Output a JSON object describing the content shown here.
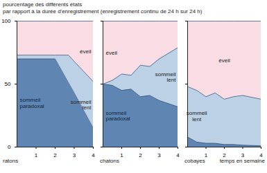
{
  "chart_data": [
    {
      "type": "area",
      "stacked": true,
      "title": "ratons",
      "y_label": "pourcentage des différents états\npar rapport à la durée d'enregistrement (enregistrement continu de 24 h sur 24 h)",
      "x": [
        0,
        1,
        2,
        2.7,
        3,
        4
      ],
      "xlim": [
        0,
        4
      ],
      "xticks": [
        1,
        2,
        3,
        4
      ],
      "ylim": [
        0,
        100
      ],
      "yticks": [
        0,
        50,
        100
      ],
      "series": [
        {
          "name": "sommeil paradoxal",
          "color": "#5f86b3",
          "values": [
            70,
            70,
            70,
            51,
            43,
            15
          ]
        },
        {
          "name": "sommeil lent",
          "color": "#bcd0e6",
          "values": [
            3,
            3,
            3,
            22,
            25,
            37
          ]
        },
        {
          "name": "éveil",
          "color": "#fadde4",
          "values": [
            27,
            27,
            27,
            27,
            32,
            48
          ]
        }
      ]
    },
    {
      "type": "area",
      "stacked": true,
      "title": "chatons",
      "x": [
        0,
        0.5,
        1,
        1.5,
        2,
        2.5,
        3,
        4
      ],
      "xlim": [
        0,
        4
      ],
      "xticks": [
        1,
        2,
        3,
        4
      ],
      "ylim": [
        0,
        100
      ],
      "yticks": [
        0,
        50,
        100
      ],
      "series": [
        {
          "name": "sommeil paradoxal",
          "color": "#5f86b3",
          "values": [
            50,
            49,
            45,
            46,
            40,
            41,
            37,
            32
          ]
        },
        {
          "name": "sommeil lent",
          "color": "#bcd0e6",
          "values": [
            0,
            4,
            13,
            11,
            25,
            23,
            33,
            47
          ]
        },
        {
          "name": "éveil",
          "color": "#fadde4",
          "values": [
            50,
            47,
            42,
            43,
            35,
            36,
            30,
            21
          ]
        }
      ]
    },
    {
      "type": "area",
      "stacked": true,
      "title": "cobayes",
      "x_label": "temps en semaine",
      "x": [
        0,
        0.5,
        1,
        1.5,
        2,
        2.5,
        3,
        4
      ],
      "xlim": [
        0,
        4
      ],
      "xticks": [
        1,
        2,
        3,
        4
      ],
      "ylim": [
        0,
        100
      ],
      "yticks": [
        0,
        50,
        100
      ],
      "series": [
        {
          "name": "sommeil paradoxal",
          "color": "#5f86b3",
          "values": [
            8,
            4,
            3,
            3,
            2,
            2,
            1.5,
            1
          ]
        },
        {
          "name": "sommeil lent",
          "color": "#bcd0e6",
          "values": [
            40,
            41,
            37,
            40,
            36,
            38,
            39.5,
            37
          ]
        },
        {
          "name": "éveil",
          "color": "#fadde4",
          "values": [
            52,
            55,
            60,
            57,
            62,
            60,
            59,
            62
          ]
        }
      ]
    }
  ]
}
